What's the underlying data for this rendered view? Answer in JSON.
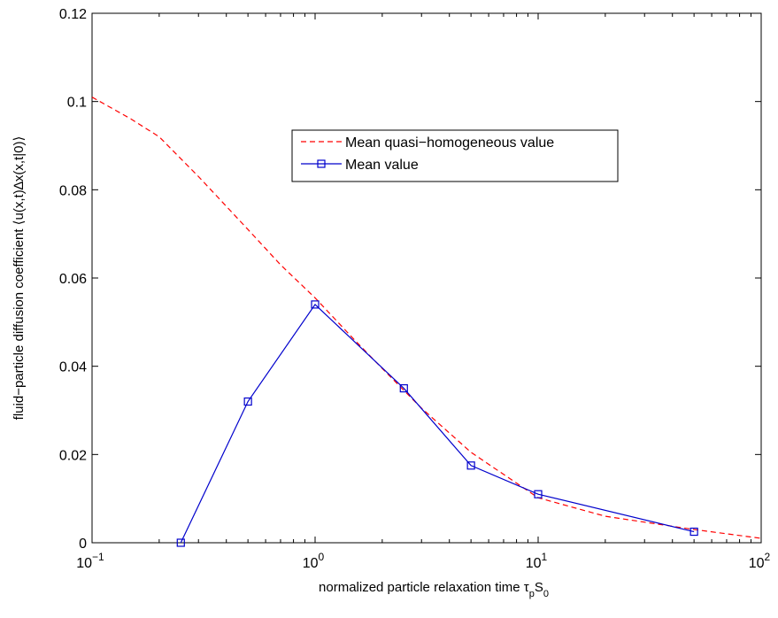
{
  "chart_data": {
    "type": "line",
    "title": "",
    "xlabel_parts": {
      "main": "normalized particle relaxation time τ",
      "sub1": "p",
      "mid": "S",
      "sub2": "0"
    },
    "ylabel": "fluid−particle diffusion coefficient ⟨u(x,t)∆x(x,t|0)⟩",
    "x_scale": "log",
    "xlim": [
      0.1,
      100
    ],
    "ylim": [
      0,
      0.12
    ],
    "x_ticks": [
      {
        "value": 0.1,
        "base": "10",
        "exp": "−1"
      },
      {
        "value": 1,
        "base": "10",
        "exp": "0"
      },
      {
        "value": 10,
        "base": "10",
        "exp": "1"
      },
      {
        "value": 100,
        "base": "10",
        "exp": "2"
      }
    ],
    "y_ticks": [
      {
        "value": 0,
        "label": "0"
      },
      {
        "value": 0.02,
        "label": "0.02"
      },
      {
        "value": 0.04,
        "label": "0.04"
      },
      {
        "value": 0.06,
        "label": "0.06"
      },
      {
        "value": 0.08,
        "label": "0.08"
      },
      {
        "value": 0.1,
        "label": "0.1"
      },
      {
        "value": 0.12,
        "label": "0.12"
      }
    ],
    "grid": false,
    "legend_position": "upper-center",
    "series": [
      {
        "name": "Mean quasi−homogeneous value",
        "color": "#ff0000",
        "line_style": "dashed",
        "marker": "none",
        "x": [
          0.1,
          0.15,
          0.2,
          0.3,
          0.5,
          0.7,
          1.0,
          1.5,
          2.0,
          3.0,
          5.0,
          7.0,
          10.0,
          20.0,
          50.0,
          100.0
        ],
        "y": [
          0.101,
          0.096,
          0.092,
          0.083,
          0.071,
          0.063,
          0.0555,
          0.046,
          0.0395,
          0.0305,
          0.0205,
          0.0155,
          0.0102,
          0.006,
          0.003,
          0.001
        ]
      },
      {
        "name": "Mean value",
        "color": "#0000cc",
        "line_style": "solid",
        "marker": "square",
        "x": [
          0.25,
          0.5,
          1.0,
          2.5,
          5.0,
          10.0,
          50.0
        ],
        "y": [
          0.0,
          0.032,
          0.054,
          0.035,
          0.0175,
          0.011,
          0.0025
        ]
      }
    ]
  }
}
